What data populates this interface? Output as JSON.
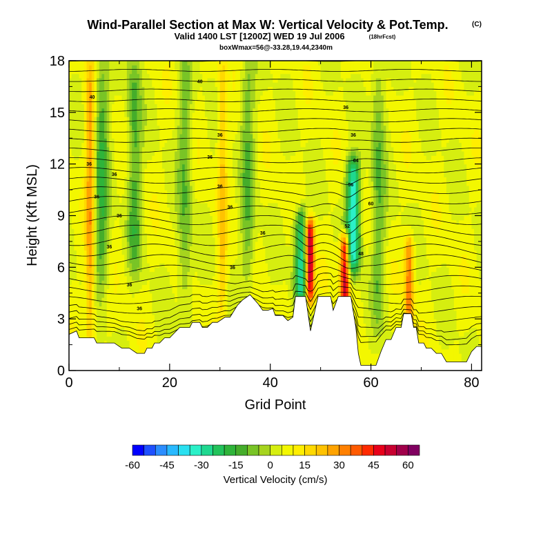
{
  "chart_data": {
    "type": "heatmap",
    "title": "Wind-Parallel Section at Max W: Vertical Velocity & Pot.Temp.",
    "title_mark": "(C)",
    "subtitle": "Valid 1400 LST [1200Z] WED 19 Jul 2006",
    "subtitle_note": "(18hrFcst)",
    "subtitle2": "boxWmax=56@-33.28,19.44,2340m",
    "xlabel": "Grid Point",
    "ylabel": "Height (Kft MSL)",
    "xlim": [
      0,
      82
    ],
    "ylim": [
      0,
      18
    ],
    "x_ticks": [
      0,
      20,
      40,
      60,
      80
    ],
    "y_ticks": [
      0,
      3,
      6,
      9,
      12,
      15,
      18
    ],
    "colorbar": {
      "label": "Vertical Velocity (cm/s)",
      "ticks": [
        -60,
        -45,
        -30,
        -15,
        0,
        15,
        30,
        45,
        60
      ],
      "bins": [
        -60,
        -55,
        -50,
        -45,
        -40,
        -35,
        -30,
        -25,
        -20,
        -15,
        -10,
        -5,
        0,
        5,
        10,
        15,
        20,
        25,
        30,
        35,
        40,
        45,
        50,
        55,
        60,
        65
      ],
      "colors": [
        "#0000ff",
        "#1e50ff",
        "#2b8dff",
        "#29b9ff",
        "#2ae0f0",
        "#2bf0c8",
        "#1fd890",
        "#22c35b",
        "#2fb43a",
        "#45ad2b",
        "#79c426",
        "#a6d41e",
        "#d6ee10",
        "#f3f700",
        "#ffee00",
        "#ffd900",
        "#ffc200",
        "#ffa300",
        "#ff8000",
        "#ff5a00",
        "#ff2a00",
        "#e8001a",
        "#c80030",
        "#a0004a",
        "#800060"
      ]
    },
    "updrafts": [
      {
        "x": 4.2,
        "peak_w": 22,
        "z_range": [
          1.5,
          18
        ]
      },
      {
        "x": 30.5,
        "peak_w": 15,
        "z_range": [
          3,
          18
        ]
      },
      {
        "x": 47.8,
        "peak_w": 56,
        "z_range": [
          4.3,
          8.5
        ]
      },
      {
        "x": 54.8,
        "peak_w": 50,
        "z_range": [
          4.3,
          7.5
        ]
      },
      {
        "x": 67.6,
        "peak_w": 28,
        "z_range": [
          3,
          7.5
        ]
      }
    ],
    "downdrafts": [
      {
        "x": 6.5,
        "min_w": -20,
        "z_range": [
          5,
          18
        ]
      },
      {
        "x": 13,
        "min_w": -18,
        "z_range": [
          6,
          18
        ]
      },
      {
        "x": 23,
        "min_w": -15,
        "z_range": [
          4,
          18
        ]
      },
      {
        "x": 35.5,
        "min_w": -15,
        "z_range": [
          5,
          18
        ]
      },
      {
        "x": 46.2,
        "min_w": -35,
        "z_range": [
          4.3,
          9
        ]
      },
      {
        "x": 56.5,
        "min_w": -40,
        "z_range": [
          6,
          12
        ]
      },
      {
        "x": 61.5,
        "min_w": -15,
        "z_range": [
          3,
          18
        ]
      }
    ],
    "terrain_height": [
      [
        0,
        2.1
      ],
      [
        1.5,
        2.3
      ],
      [
        2,
        1.9
      ],
      [
        5,
        1.9
      ],
      [
        5.5,
        1.6
      ],
      [
        8,
        1.6
      ],
      [
        9,
        1.6
      ],
      [
        10.5,
        1.3
      ],
      [
        12,
        1.3
      ],
      [
        13.5,
        1.0
      ],
      [
        15,
        1.0
      ],
      [
        15.5,
        1.3
      ],
      [
        16.5,
        1.3
      ],
      [
        17,
        1.6
      ],
      [
        18,
        1.6
      ],
      [
        19,
        1.9
      ],
      [
        20,
        1.9
      ],
      [
        22,
        2.5
      ],
      [
        24,
        2.5
      ],
      [
        24.5,
        2.8
      ],
      [
        26,
        2.8
      ],
      [
        26.5,
        2.5
      ],
      [
        27.5,
        2.5
      ],
      [
        28.5,
        2.8
      ],
      [
        29.5,
        2.8
      ],
      [
        31,
        3.1
      ],
      [
        32,
        3.1
      ],
      [
        33.5,
        3.8
      ],
      [
        34.5,
        4.1
      ],
      [
        36,
        4.4
      ],
      [
        37.5,
        3.9
      ],
      [
        38.5,
        3.5
      ],
      [
        39.5,
        3.5
      ],
      [
        40.5,
        3.6
      ],
      [
        41,
        3.2
      ],
      [
        42.5,
        3.2
      ],
      [
        43.5,
        2.9
      ],
      [
        44.5,
        3.1
      ],
      [
        45,
        4.3
      ],
      [
        47,
        4.3
      ],
      [
        48,
        2.3
      ],
      [
        49.5,
        4.3
      ],
      [
        52,
        4.3
      ],
      [
        52.5,
        3.5
      ],
      [
        53.5,
        4.3
      ],
      [
        56,
        4.3
      ],
      [
        57,
        2.5
      ],
      [
        57.5,
        1.0
      ],
      [
        58,
        0.3
      ],
      [
        61,
        0.3
      ],
      [
        62,
        1.1
      ],
      [
        63,
        1.8
      ],
      [
        64,
        1.8
      ],
      [
        65,
        2.5
      ],
      [
        66,
        2.5
      ],
      [
        66.5,
        3.3
      ],
      [
        68,
        3.3
      ],
      [
        68.5,
        2.5
      ],
      [
        69,
        2.5
      ],
      [
        69.5,
        1.6
      ],
      [
        70.5,
        1.6
      ],
      [
        71,
        1.3
      ],
      [
        72,
        1.3
      ],
      [
        73,
        1.0
      ],
      [
        74,
        1.0
      ],
      [
        75,
        0.5
      ],
      [
        76,
        0.5
      ],
      [
        79,
        0.5
      ],
      [
        80,
        1.1
      ],
      [
        81,
        1.4
      ],
      [
        82,
        1.4
      ]
    ],
    "theta_contours": [
      {
        "label": "36",
        "level": 304
      },
      {
        "label": "40",
        "level": 308
      },
      {
        "label": "44",
        "level": 312
      },
      {
        "label": "48",
        "level": 316
      },
      {
        "label": "52",
        "level": 320
      },
      {
        "label": "56",
        "level": 324
      },
      {
        "label": "60",
        "level": 328
      },
      {
        "label": "64",
        "level": 332
      }
    ],
    "contour_interval_K": 1
  }
}
